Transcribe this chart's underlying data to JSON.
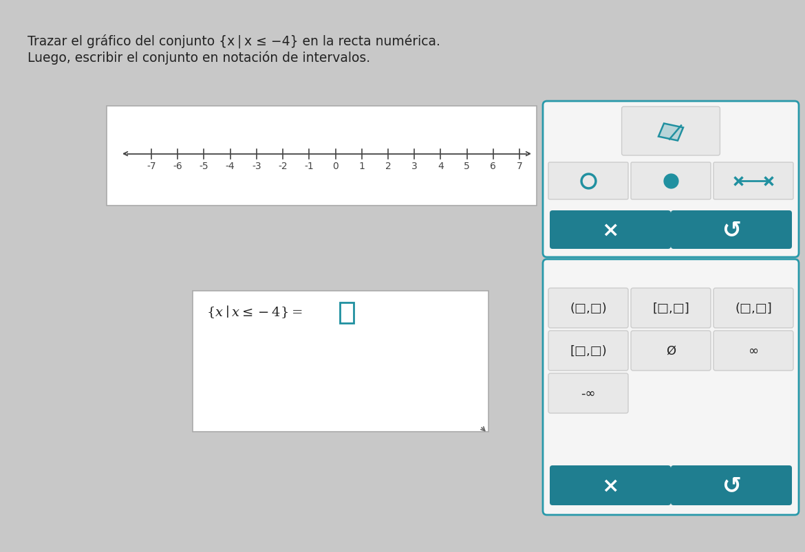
{
  "bg_color": "#c8c8c8",
  "title_line1": "Trazar el gráfico del conjunto {x | x ≤ −4} en la recta numérica.",
  "title_line2": "Luego, escribir el conjunto en notación de intervalos.",
  "number_line_ticks": [
    -7,
    -6,
    -5,
    -4,
    -3,
    -2,
    -1,
    0,
    1,
    2,
    3,
    4,
    5,
    6,
    7
  ],
  "box_bg": "#ffffff",
  "box_border": "#aaaaaa",
  "toolbar_border": "#2899aa",
  "toolbar_bg": "#f5f5f5",
  "btn_teal": "#1f7e90",
  "teal_icon": "#2090a0",
  "cell_bg": "#e8e8e8",
  "cell_border": "#cccccc",
  "text_dark": "#222222",
  "tick_color": "#444444",
  "arrow_color": "#444444"
}
